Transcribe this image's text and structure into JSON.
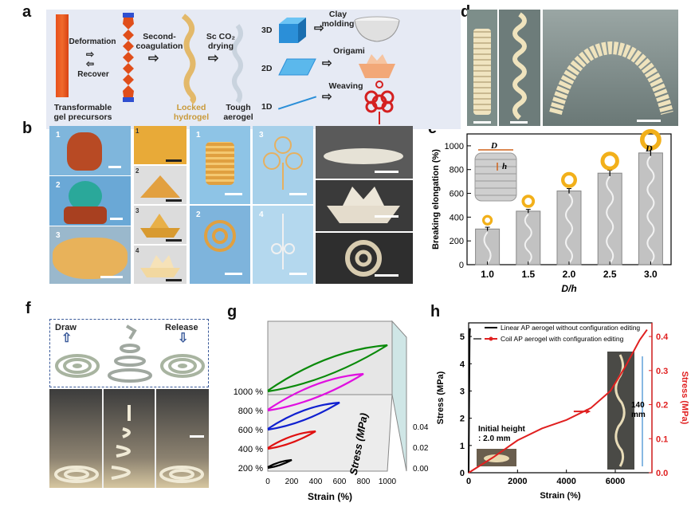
{
  "panels": {
    "a": "a",
    "b": "b",
    "c": "c",
    "d": "d",
    "e": "e",
    "f": "f",
    "g": "g",
    "h": "h"
  },
  "panel_a": {
    "deformation": "Deformation",
    "recover": "Recover",
    "second_coagulation": "Second-\ncoagulation",
    "sc_drying": "Sc CO₂\ndrying",
    "locked": "Locked\nhydrogel",
    "tough": "Tough\naerogel",
    "precursors": "Transformable\ngel precursors",
    "d3": "3D",
    "d2": "2D",
    "d1": "1D",
    "clay": "Clay\nmolding",
    "origami": "Origami",
    "weaving": "Weaving"
  },
  "panel_b": {
    "n1": "1",
    "n2": "2",
    "n3": "3",
    "s1": "1",
    "s2": "2",
    "s3": "3",
    "s4": "4",
    "w1": "1",
    "w2": "2",
    "w3": "3",
    "w4": "4"
  },
  "panel_f": {
    "draw": "Draw",
    "release": "Release"
  },
  "chart_data": [
    {
      "id": "e",
      "type": "bar",
      "categories": [
        "1.0",
        "1.5",
        "2.0",
        "2.5",
        "3.0"
      ],
      "values": [
        300,
        450,
        620,
        770,
        940
      ],
      "errors": [
        15,
        15,
        20,
        25,
        25
      ],
      "xlabel": "D/h",
      "ylabel": "Breaking elongation (%)",
      "ylim": [
        0,
        1100
      ],
      "yticks": [
        0,
        200,
        400,
        600,
        800,
        1000
      ],
      "annotations": {
        "D": "D",
        "h": "h"
      }
    },
    {
      "id": "g",
      "type": "line",
      "series_labels": [
        "200 %",
        "400 %",
        "600 %",
        "800 %",
        "1000 %"
      ],
      "series_colors": [
        "#000000",
        "#e01010",
        "#1020d0",
        "#e010e0",
        "#0a8a0a"
      ],
      "max_strain": [
        200,
        400,
        600,
        800,
        1000
      ],
      "xlabel": "Strain (%)",
      "zlabel": "Stress (MPa)",
      "xticks": [
        0,
        200,
        400,
        600,
        800,
        1000
      ],
      "zticks": [
        "0.00",
        "0.02",
        "0.04"
      ]
    },
    {
      "id": "h",
      "type": "line",
      "xlabel": "Strain (%)",
      "ylabel_left": "Stress (MPa)",
      "ylabel_right": "Stress (MPa)",
      "xticks": [
        0,
        2000,
        4000,
        6000
      ],
      "yticks_left": [
        0,
        1,
        2,
        3,
        4,
        5
      ],
      "yticks_right": [
        "0.0",
        "0.1",
        "0.2",
        "0.3",
        "0.4"
      ],
      "legend": [
        "Linear AP aerogel without configuration editing",
        "Coil AP aerogel with configuration editing"
      ],
      "linear": {
        "x": [
          0,
          20,
          40,
          55
        ],
        "y": [
          0,
          2.5,
          5.0,
          5.3
        ]
      },
      "coil": {
        "x": [
          0,
          1000,
          2000,
          3000,
          4000,
          5000,
          5800,
          6400,
          7000,
          7300
        ],
        "y": [
          0,
          0.045,
          0.095,
          0.13,
          0.155,
          0.19,
          0.24,
          0.31,
          0.39,
          0.42
        ]
      },
      "initial_height": "Initial height\n: 2.0 mm",
      "length_label": "140\nmm"
    }
  ]
}
